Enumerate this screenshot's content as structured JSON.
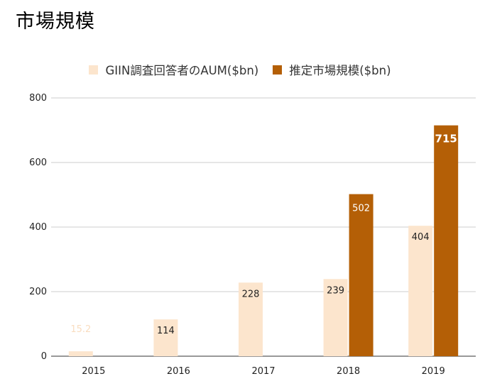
{
  "page": {
    "title": "市場規模"
  },
  "chart_data": {
    "type": "bar",
    "title": "",
    "xlabel": "",
    "ylabel": "",
    "categories": [
      "2015",
      "2016",
      "2017",
      "2018",
      "2019"
    ],
    "series": [
      {
        "name": "GIIN調査回答者のAUM($bn)",
        "color": "#fce5cd",
        "values": [
          15.2,
          114,
          228,
          239,
          404
        ],
        "labels": [
          "15.2",
          "114",
          "228",
          "239",
          "404"
        ]
      },
      {
        "name": "推定市場規模($bn)",
        "color": "#b45f06",
        "values": [
          null,
          null,
          null,
          502,
          715
        ],
        "labels": [
          "",
          "",
          "",
          "502",
          "715"
        ]
      }
    ],
    "ylim": [
      0,
      800
    ],
    "yticks": [
      "0",
      "200",
      "400",
      "600",
      "800"
    ],
    "grid": true,
    "legend": "top"
  }
}
